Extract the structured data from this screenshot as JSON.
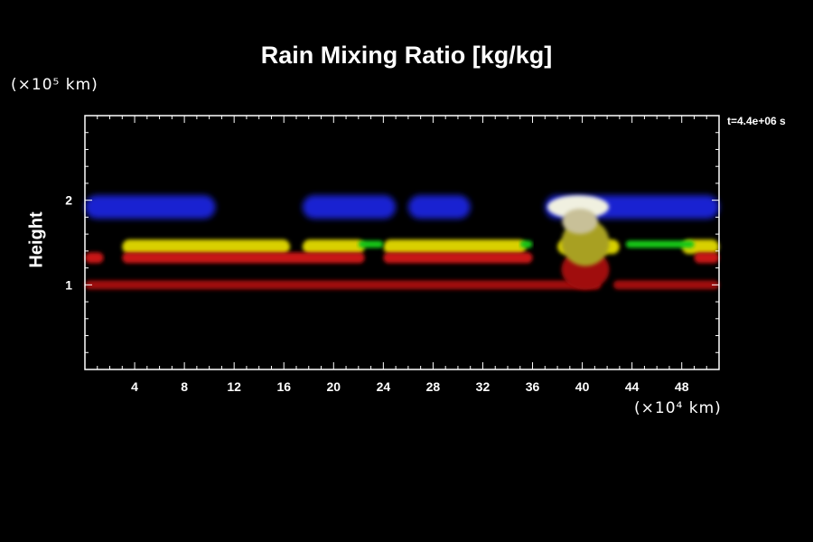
{
  "chart_data": {
    "type": "heatmap",
    "title": "Rain Mixing Ratio [kg/kg]",
    "ylabel": "Height",
    "y_unit_label": "(×10⁵ km)",
    "x_unit_label": "(×10⁴ km)",
    "time_label": "t=4.4e+06 s",
    "xlim": [
      0,
      51
    ],
    "ylim": [
      0,
      3
    ],
    "x_ticks": [
      4,
      8,
      12,
      16,
      20,
      24,
      28,
      32,
      36,
      40,
      44,
      48
    ],
    "y_ticks": [
      1,
      2
    ],
    "legend": "none",
    "grid": false,
    "colors": {
      "background": "#000000",
      "frame": "#ffffff",
      "blue": "#1a28e8",
      "yellow": "#d8d000",
      "red": "#c81414",
      "darkred": "#a00c0c",
      "green": "#18c818",
      "white": "#f0f0e0"
    },
    "layers": [
      {
        "name": "upper-blue",
        "color": "blue",
        "y": 1.92,
        "segments": [
          [
            0,
            10.5
          ],
          [
            17.5,
            25
          ],
          [
            26,
            31
          ],
          [
            37,
            51
          ]
        ]
      },
      {
        "name": "yellow-band",
        "color": "yellow",
        "y": 1.45,
        "segments": [
          [
            3,
            16.5
          ],
          [
            17.5,
            22.5
          ],
          [
            24,
            35.5
          ],
          [
            38,
            43
          ],
          [
            48,
            51
          ]
        ]
      },
      {
        "name": "green-edge",
        "color": "green",
        "y": 1.48,
        "segments": [
          [
            22,
            24
          ],
          [
            35,
            36
          ],
          [
            43.5,
            49
          ]
        ]
      },
      {
        "name": "red-band",
        "color": "red",
        "y": 1.32,
        "segments": [
          [
            0,
            1.5
          ],
          [
            3,
            22.5
          ],
          [
            24,
            36
          ],
          [
            49,
            51
          ]
        ]
      },
      {
        "name": "lower-darkred",
        "color": "darkred",
        "y": 1.0,
        "segments": [
          [
            0,
            41.5
          ],
          [
            42.5,
            51
          ]
        ]
      },
      {
        "name": "convective-column",
        "color": "white",
        "y": 1.7,
        "segments": [
          [
            37.5,
            43
          ]
        ]
      }
    ]
  }
}
